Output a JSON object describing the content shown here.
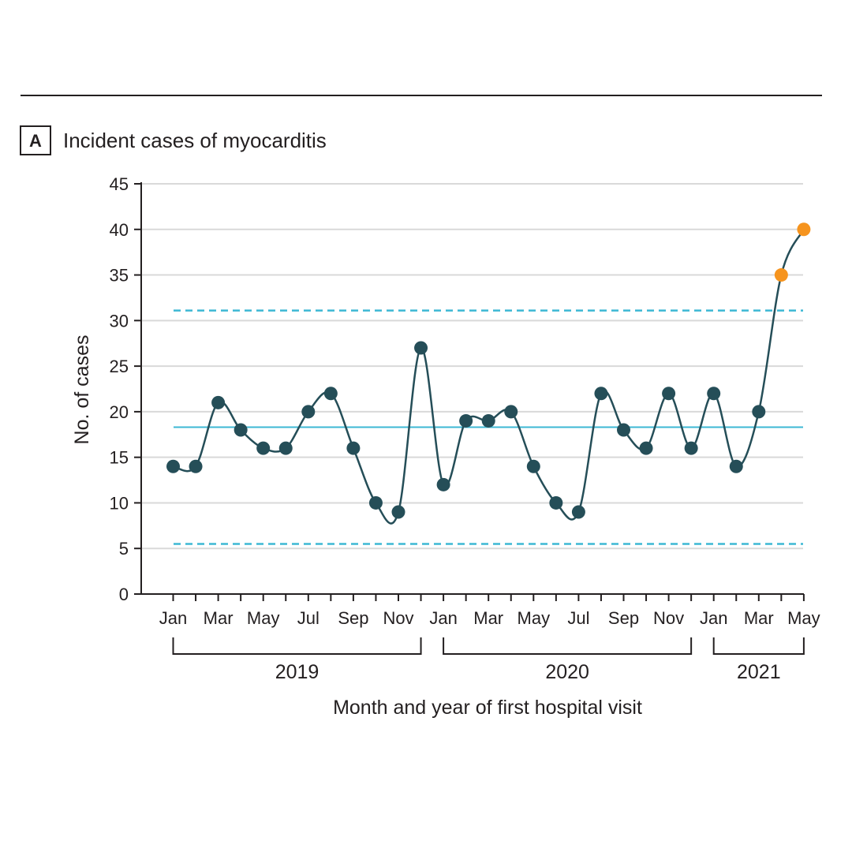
{
  "panel": {
    "letter": "A",
    "title": "Incident cases of myocarditis"
  },
  "chart_data": {
    "type": "line",
    "title": "Incident cases of myocarditis",
    "xlabel": "Month and year of first hospital visit",
    "ylabel": "No. of cases",
    "ylim": [
      0,
      45
    ],
    "yticks": [
      0,
      5,
      10,
      15,
      20,
      25,
      30,
      35,
      40,
      45
    ],
    "grid": true,
    "months": [
      "Jan",
      "Feb",
      "Mar",
      "Apr",
      "May",
      "Jun",
      "Jul",
      "Aug",
      "Sep",
      "Oct",
      "Nov",
      "Dec",
      "Jan",
      "Feb",
      "Mar",
      "Apr",
      "May",
      "Jun",
      "Jul",
      "Aug",
      "Sep",
      "Oct",
      "Nov",
      "Dec",
      "Jan",
      "Feb",
      "Mar",
      "Apr",
      "May"
    ],
    "month_labels_shown": [
      "Jan",
      "Mar",
      "May",
      "Jul",
      "Sep",
      "Nov",
      "Jan",
      "Mar",
      "May",
      "Jul",
      "Sep",
      "Nov",
      "Jan",
      "Mar",
      "May"
    ],
    "years": [
      {
        "label": "2019",
        "start": 0,
        "end": 11
      },
      {
        "label": "2020",
        "start": 12,
        "end": 23
      },
      {
        "label": "2021",
        "start": 24,
        "end": 28
      }
    ],
    "values": [
      14,
      14,
      21,
      18,
      16,
      16,
      20,
      22,
      16,
      10,
      9,
      27,
      12,
      19,
      19,
      20,
      14,
      10,
      9,
      22,
      18,
      16,
      22,
      16,
      22,
      14,
      20,
      35,
      40
    ],
    "highlighted_indices": [
      27,
      28
    ],
    "reference_lines": {
      "mean": 18.3,
      "lower_limit": 5.5,
      "upper_limit": 31.1
    },
    "colors": {
      "line": "#254e58",
      "highlight": "#f6941e",
      "mean": "#3db8d4",
      "limits": "#3db8d4",
      "grid": "#d9d9d9"
    }
  }
}
